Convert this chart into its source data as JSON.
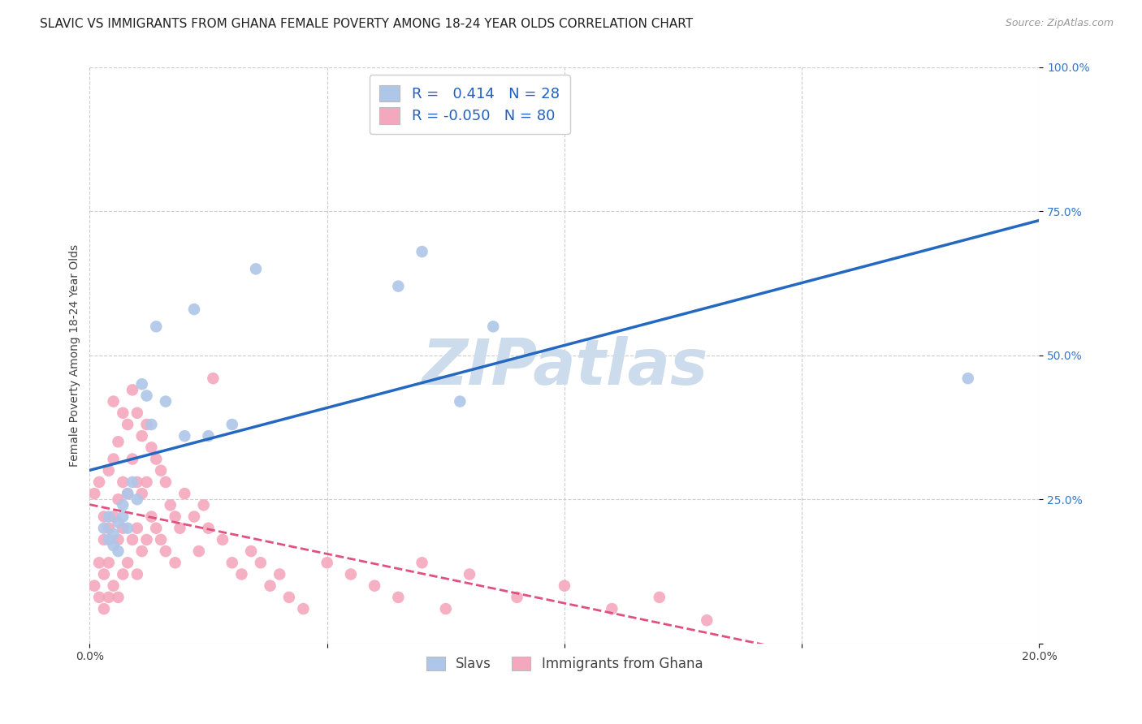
{
  "title": "SLAVIC VS IMMIGRANTS FROM GHANA FEMALE POVERTY AMONG 18-24 YEAR OLDS CORRELATION CHART",
  "source": "Source: ZipAtlas.com",
  "ylabel": "Female Poverty Among 18-24 Year Olds",
  "x_min": 0.0,
  "x_max": 0.2,
  "y_min": 0.0,
  "y_max": 1.0,
  "x_ticks": [
    0.0,
    0.05,
    0.1,
    0.15,
    0.2
  ],
  "x_tick_labels": [
    "0.0%",
    "",
    "",
    "",
    "20.0%"
  ],
  "y_ticks": [
    0.0,
    0.25,
    0.5,
    0.75,
    1.0
  ],
  "y_tick_labels": [
    "",
    "25.0%",
    "50.0%",
    "75.0%",
    "100.0%"
  ],
  "slavs_R": 0.414,
  "slavs_N": 28,
  "ghana_R": -0.05,
  "ghana_N": 80,
  "slavs_color": "#aec6e8",
  "slavs_line_color": "#2468c0",
  "ghana_color": "#f4a8be",
  "ghana_line_color": "#e05080",
  "watermark": "ZIPatlas",
  "watermark_color": "#ccdcec",
  "legend_label_slavs": "Slavs",
  "legend_label_ghana": "Immigrants from Ghana",
  "slavs_scatter_x": [
    0.003,
    0.004,
    0.004,
    0.005,
    0.005,
    0.006,
    0.006,
    0.007,
    0.007,
    0.008,
    0.008,
    0.009,
    0.01,
    0.011,
    0.012,
    0.013,
    0.014,
    0.016,
    0.02,
    0.022,
    0.025,
    0.03,
    0.035,
    0.065,
    0.07,
    0.078,
    0.085,
    0.185
  ],
  "slavs_scatter_y": [
    0.2,
    0.18,
    0.22,
    0.17,
    0.19,
    0.21,
    0.16,
    0.24,
    0.22,
    0.2,
    0.26,
    0.28,
    0.25,
    0.45,
    0.43,
    0.38,
    0.55,
    0.42,
    0.36,
    0.58,
    0.36,
    0.38,
    0.65,
    0.62,
    0.68,
    0.42,
    0.55,
    0.46
  ],
  "ghana_scatter_x": [
    0.001,
    0.001,
    0.002,
    0.002,
    0.002,
    0.003,
    0.003,
    0.003,
    0.003,
    0.004,
    0.004,
    0.004,
    0.004,
    0.005,
    0.005,
    0.005,
    0.005,
    0.006,
    0.006,
    0.006,
    0.006,
    0.007,
    0.007,
    0.007,
    0.007,
    0.008,
    0.008,
    0.008,
    0.009,
    0.009,
    0.009,
    0.01,
    0.01,
    0.01,
    0.01,
    0.011,
    0.011,
    0.011,
    0.012,
    0.012,
    0.012,
    0.013,
    0.013,
    0.014,
    0.014,
    0.015,
    0.015,
    0.016,
    0.016,
    0.017,
    0.018,
    0.018,
    0.019,
    0.02,
    0.022,
    0.023,
    0.024,
    0.025,
    0.026,
    0.028,
    0.03,
    0.032,
    0.034,
    0.036,
    0.038,
    0.04,
    0.042,
    0.045,
    0.05,
    0.055,
    0.06,
    0.065,
    0.07,
    0.075,
    0.08,
    0.09,
    0.1,
    0.11,
    0.12,
    0.13
  ],
  "ghana_scatter_y": [
    0.26,
    0.1,
    0.28,
    0.14,
    0.08,
    0.22,
    0.18,
    0.12,
    0.06,
    0.3,
    0.2,
    0.14,
    0.08,
    0.42,
    0.32,
    0.22,
    0.1,
    0.35,
    0.25,
    0.18,
    0.08,
    0.4,
    0.28,
    0.2,
    0.12,
    0.38,
    0.26,
    0.14,
    0.44,
    0.32,
    0.18,
    0.4,
    0.28,
    0.2,
    0.12,
    0.36,
    0.26,
    0.16,
    0.38,
    0.28,
    0.18,
    0.34,
    0.22,
    0.32,
    0.2,
    0.3,
    0.18,
    0.28,
    0.16,
    0.24,
    0.22,
    0.14,
    0.2,
    0.26,
    0.22,
    0.16,
    0.24,
    0.2,
    0.46,
    0.18,
    0.14,
    0.12,
    0.16,
    0.14,
    0.1,
    0.12,
    0.08,
    0.06,
    0.14,
    0.12,
    0.1,
    0.08,
    0.14,
    0.06,
    0.12,
    0.08,
    0.1,
    0.06,
    0.08,
    0.04
  ],
  "title_fontsize": 11,
  "axis_label_fontsize": 10,
  "tick_fontsize": 10,
  "legend_fontsize": 12
}
